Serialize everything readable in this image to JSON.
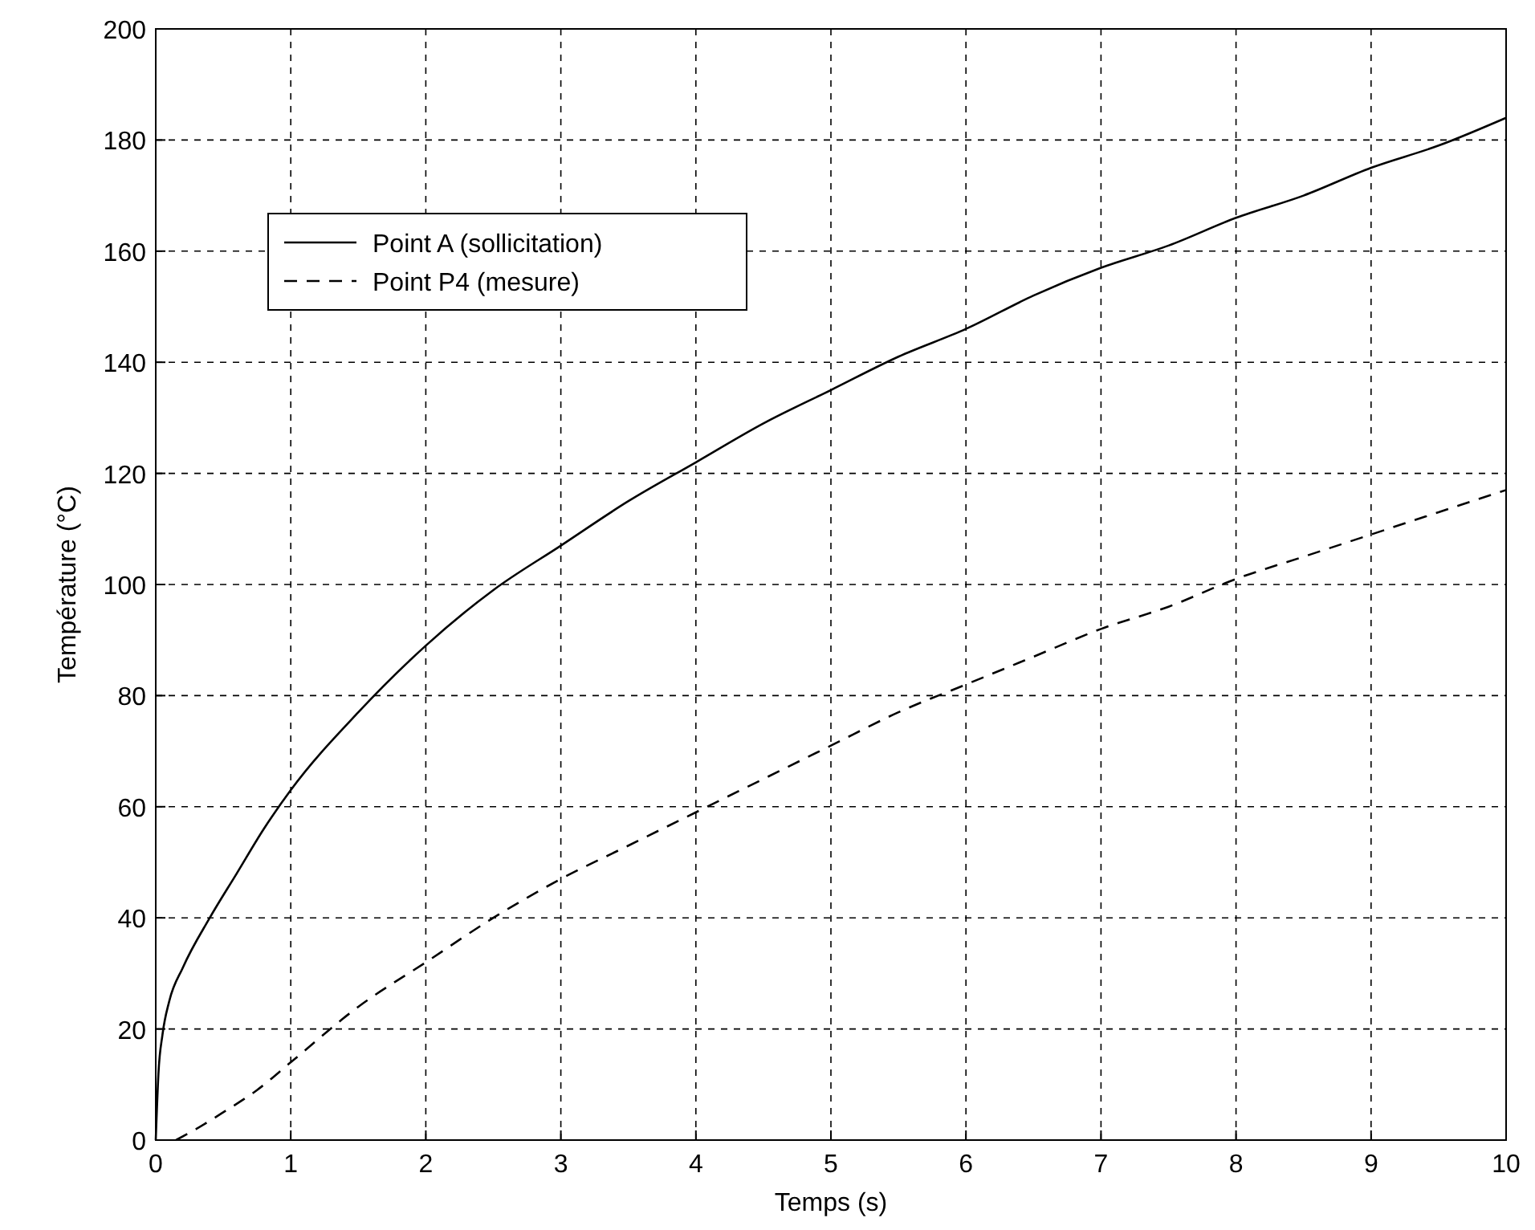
{
  "chart_data": {
    "type": "line",
    "xlabel": "Temps (s)",
    "ylabel": "Température (°C)",
    "xlim": [
      0,
      10
    ],
    "ylim": [
      0,
      200
    ],
    "xticks": [
      0,
      1,
      2,
      3,
      4,
      5,
      6,
      7,
      8,
      9,
      10
    ],
    "yticks": [
      0,
      20,
      40,
      60,
      80,
      100,
      120,
      140,
      160,
      180,
      200
    ],
    "grid": true,
    "legend": "top left",
    "series": [
      {
        "name": "Point A (sollicitation)",
        "color": "#000000",
        "line_style": "solid",
        "x": [
          0,
          0.02,
          0.05,
          0.1,
          0.2,
          0.4,
          0.6,
          0.8,
          1,
          1.5,
          2,
          2.5,
          3,
          3.5,
          4,
          4.5,
          5,
          5.5,
          6,
          6.5,
          7,
          7.5,
          8,
          8.5,
          9,
          9.5,
          10
        ],
        "values": [
          0,
          12,
          19,
          25,
          31,
          40,
          48,
          56,
          63,
          77,
          89,
          99,
          107,
          115,
          122,
          129,
          135,
          141,
          146,
          152,
          157,
          161,
          166,
          170,
          175,
          179,
          184
        ]
      },
      {
        "name": "Point P4 (mesure)",
        "color": "#000000",
        "line_style": "dashed",
        "x": [
          0.15,
          0.3,
          0.5,
          0.75,
          1,
          1.5,
          2,
          2.5,
          3,
          3.5,
          4,
          4.5,
          5,
          5.5,
          6,
          6.5,
          7,
          7.5,
          8,
          8.5,
          9,
          9.5,
          10
        ],
        "values": [
          0,
          2,
          5,
          9,
          14,
          24,
          32,
          40,
          47,
          53,
          59,
          65,
          71,
          77,
          82,
          87,
          92,
          96,
          101,
          105,
          109,
          113,
          117
        ]
      }
    ]
  }
}
